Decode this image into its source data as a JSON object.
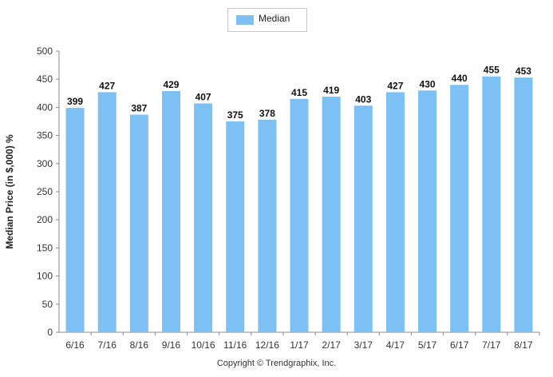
{
  "legend": {
    "label": "Median"
  },
  "copyright": "Copyright © Trendgraphix, Inc.",
  "chart_data": {
    "type": "bar",
    "title": "",
    "xlabel": "",
    "ylabel": "Median Price (in $,000) %",
    "ylim": [
      0,
      500
    ],
    "yticks": [
      0,
      50,
      100,
      150,
      200,
      250,
      300,
      350,
      400,
      450,
      500
    ],
    "grid": false,
    "legend_position": "top-center",
    "bar_color": "#7cc0f4",
    "categories": [
      "6/16",
      "7/16",
      "8/16",
      "9/16",
      "10/16",
      "11/16",
      "12/16",
      "1/17",
      "2/17",
      "3/17",
      "4/17",
      "5/17",
      "6/17",
      "7/17",
      "8/17"
    ],
    "series": [
      {
        "name": "Median",
        "values": [
          399,
          427,
          387,
          429,
          407,
          375,
          378,
          415,
          419,
          403,
          427,
          430,
          440,
          455,
          453
        ]
      }
    ]
  }
}
